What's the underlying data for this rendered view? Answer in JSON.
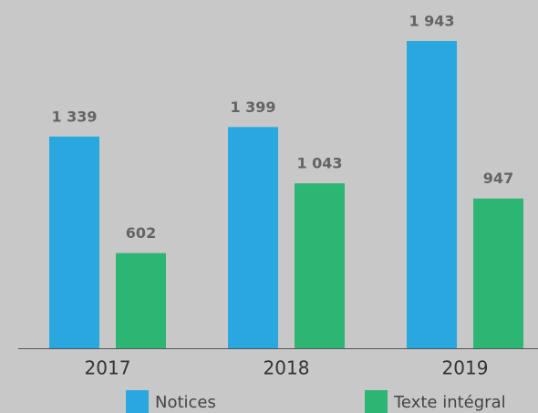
{
  "chart_data": {
    "type": "bar",
    "categories": [
      "2017",
      "2018",
      "2019"
    ],
    "series": [
      {
        "name": "Notices",
        "color": "#29a8e0",
        "values": [
          1339,
          1399,
          1943
        ],
        "value_labels": [
          "1 339",
          "1 399",
          "1 943"
        ]
      },
      {
        "name": "Texte intégral",
        "color": "#2db673",
        "values": [
          602,
          1043,
          947
        ],
        "value_labels": [
          "602",
          "1 043",
          "947"
        ]
      }
    ],
    "legend": "bottom"
  }
}
